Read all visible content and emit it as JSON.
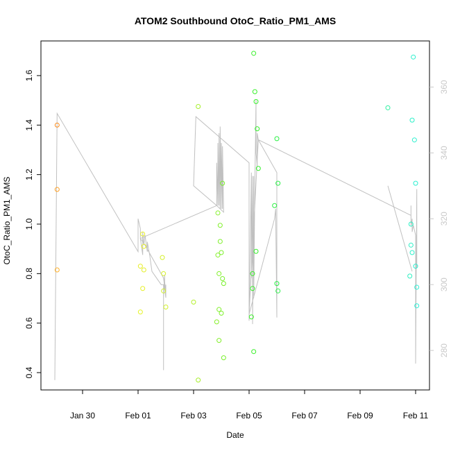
{
  "chart_data": {
    "type": "scatter",
    "title": "ATOM2 Southbound OtoC_Ratio_PM1_AMS",
    "xlabel": "Date",
    "ylabel": "OtoC_Ratio_PM1_AMS",
    "x_ticks": [
      "Jan 30",
      "Feb 01",
      "Feb 03",
      "Feb 05",
      "Feb 07",
      "Feb 09",
      "Feb 11"
    ],
    "y_ticks": [
      "0.4",
      "0.6",
      "0.8",
      "1.0",
      "1.2",
      "1.4",
      "1.6"
    ],
    "y2_ticks": [
      "280",
      "300",
      "320",
      "340",
      "360"
    ],
    "xlim": [
      "Jan 28 12:00",
      "Feb 11 12:00"
    ],
    "ylim": [
      0.33,
      1.74
    ],
    "y2lim": [
      268,
      374
    ],
    "grid": false,
    "legend": "none",
    "points": [
      {
        "x": "Jan 29 02:00",
        "y": 1.4,
        "color": "#ff8c1a"
      },
      {
        "x": "Jan 29 02:00",
        "y": 1.14,
        "color": "#ff9f22"
      },
      {
        "x": "Jan 29 02:00",
        "y": 0.815,
        "color": "#ffb02a"
      },
      {
        "x": "Feb 01 02:00",
        "y": 0.645,
        "color": "#e6f52a"
      },
      {
        "x": "Feb 01 02:00",
        "y": 0.83,
        "color": "#e8ee2a"
      },
      {
        "x": "Feb 01 04:00",
        "y": 0.74,
        "color": "#e6f02a"
      },
      {
        "x": "Feb 01 04:00",
        "y": 0.96,
        "color": "#eaf22a"
      },
      {
        "x": "Feb 01 05:00",
        "y": 0.815,
        "color": "#e4ee2a"
      },
      {
        "x": "Feb 01 05:00",
        "y": 0.91,
        "color": "#e8f02a"
      },
      {
        "x": "Feb 01 21:00",
        "y": 0.865,
        "color": "#d4f02a"
      },
      {
        "x": "Feb 01 22:00",
        "y": 0.73,
        "color": "#d0f02a"
      },
      {
        "x": "Feb 01 22:00",
        "y": 0.8,
        "color": "#d6f02a"
      },
      {
        "x": "Feb 02 00:00",
        "y": 0.665,
        "color": "#d2f02a"
      },
      {
        "x": "Feb 03 00:00",
        "y": 0.685,
        "color": "#b4f02a"
      },
      {
        "x": "Feb 03 04:00",
        "y": 1.475,
        "color": "#a6f02a"
      },
      {
        "x": "Feb 03 04:00",
        "y": 0.37,
        "color": "#a6ee2a"
      },
      {
        "x": "Feb 03 20:00",
        "y": 0.605,
        "color": "#86f02a"
      },
      {
        "x": "Feb 03 21:00",
        "y": 1.045,
        "color": "#84f02a"
      },
      {
        "x": "Feb 03 21:00",
        "y": 0.875,
        "color": "#86f02a"
      },
      {
        "x": "Feb 03 22:00",
        "y": 0.8,
        "color": "#82f02a"
      },
      {
        "x": "Feb 03 22:00",
        "y": 0.655,
        "color": "#80f02a"
      },
      {
        "x": "Feb 03 22:00",
        "y": 0.53,
        "color": "#82ee2a"
      },
      {
        "x": "Feb 03 23:00",
        "y": 0.995,
        "color": "#80f02a"
      },
      {
        "x": "Feb 03 23:00",
        "y": 0.93,
        "color": "#7ef02a"
      },
      {
        "x": "Feb 04 00:00",
        "y": 0.64,
        "color": "#7cf02a"
      },
      {
        "x": "Feb 04 00:00",
        "y": 0.885,
        "color": "#7cf02a"
      },
      {
        "x": "Feb 04 01:00",
        "y": 0.78,
        "color": "#7af02a"
      },
      {
        "x": "Feb 04 01:00",
        "y": 1.165,
        "color": "#7af02a"
      },
      {
        "x": "Feb 04 02:00",
        "y": 0.76,
        "color": "#78f02a"
      },
      {
        "x": "Feb 04 02:00",
        "y": 0.46,
        "color": "#78f02a"
      },
      {
        "x": "Feb 05 02:00",
        "y": 0.625,
        "color": "#3cf02a"
      },
      {
        "x": "Feb 05 03:00",
        "y": 0.8,
        "color": "#3af02a"
      },
      {
        "x": "Feb 05 03:00",
        "y": 0.74,
        "color": "#3af02a"
      },
      {
        "x": "Feb 05 04:00",
        "y": 0.485,
        "color": "#3af02a"
      },
      {
        "x": "Feb 05 04:00",
        "y": 1.69,
        "color": "#38f02a"
      },
      {
        "x": "Feb 05 05:00",
        "y": 1.535,
        "color": "#38f02a"
      },
      {
        "x": "Feb 05 06:00",
        "y": 1.495,
        "color": "#36f02a"
      },
      {
        "x": "Feb 05 06:00",
        "y": 0.89,
        "color": "#36f02a"
      },
      {
        "x": "Feb 05 07:00",
        "y": 1.385,
        "color": "#34f02a"
      },
      {
        "x": "Feb 05 08:00",
        "y": 1.225,
        "color": "#34f02a"
      },
      {
        "x": "Feb 05 22:00",
        "y": 1.075,
        "color": "#2af040"
      },
      {
        "x": "Feb 06 00:00",
        "y": 1.345,
        "color": "#2af044"
      },
      {
        "x": "Feb 06 00:00",
        "y": 0.76,
        "color": "#2af046"
      },
      {
        "x": "Feb 06 01:00",
        "y": 0.73,
        "color": "#2af048"
      },
      {
        "x": "Feb 06 01:00",
        "y": 1.165,
        "color": "#2af048"
      },
      {
        "x": "Feb 10 00:00",
        "y": 1.47,
        "color": "#2af0a0"
      },
      {
        "x": "Feb 10 19:00",
        "y": 0.79,
        "color": "#2af0c0"
      },
      {
        "x": "Feb 10 20:00",
        "y": 1.0,
        "color": "#2af0c4"
      },
      {
        "x": "Feb 10 20:00",
        "y": 0.915,
        "color": "#2af0c6"
      },
      {
        "x": "Feb 10 21:00",
        "y": 1.42,
        "color": "#2af0c8"
      },
      {
        "x": "Feb 10 21:00",
        "y": 0.885,
        "color": "#2af0ca"
      },
      {
        "x": "Feb 10 22:00",
        "y": 1.675,
        "color": "#2af0cc"
      },
      {
        "x": "Feb 10 23:00",
        "y": 1.34,
        "color": "#2af0ce"
      },
      {
        "x": "Feb 11 00:00",
        "y": 1.165,
        "color": "#2af0d0"
      },
      {
        "x": "Feb 11 00:00",
        "y": 0.83,
        "color": "#2af0d2"
      },
      {
        "x": "Feb 11 01:00",
        "y": 0.745,
        "color": "#2af0d4"
      },
      {
        "x": "Feb 11 01:00",
        "y": 0.67,
        "color": "#2af0d6"
      }
    ],
    "line_series": {
      "color": "#c0c0c0",
      "axis": "right",
      "points": [
        [
          "Jan 29 00:00",
          271
        ],
        [
          "Jan 29 02:00",
          352
        ],
        [
          "Feb 01 00:00",
          310
        ],
        [
          "Feb 01 00:00",
          320
        ],
        [
          "Feb 01 02:00",
          317
        ],
        [
          "Feb 01 02:00",
          314
        ],
        [
          "Feb 01 04:00",
          309
        ],
        [
          "Feb 01 04:00",
          316
        ],
        [
          "Feb 01 05:00",
          312
        ],
        [
          "Feb 01 06:00",
          315
        ],
        [
          "Feb 01 08:00",
          310
        ],
        [
          "Feb 01 08:00",
          313
        ],
        [
          "Feb 01 10:00",
          309
        ],
        [
          "Feb 01 12:00",
          304
        ],
        [
          "Feb 01 20:00",
          300
        ],
        [
          "Feb 01 22:00",
          300
        ],
        [
          "Feb 01 22:00",
          274
        ],
        [
          "Feb 01 22:00",
          296
        ],
        [
          "Feb 01 23:00",
          303
        ],
        [
          "Feb 01 23:00",
          301
        ],
        [
          "Feb 02 00:00",
          297
        ],
        [
          "Feb 02 00:00",
          300
        ],
        [
          "Feb 02 00:00",
          296
        ],
        [
          "Feb 01 22:00",
          302
        ],
        [
          "Feb 01 06:00",
          312
        ],
        [
          "Feb 01 02:00",
          314
        ],
        [
          "Feb 03 20:00",
          324
        ],
        [
          "Feb 03 20:00",
          337
        ],
        [
          "Feb 03 21:00",
          324
        ],
        [
          "Feb 03 21:00",
          343
        ],
        [
          "Feb 03 22:00",
          324
        ],
        [
          "Feb 03 22:00",
          346
        ],
        [
          "Feb 03 23:00",
          323
        ],
        [
          "Feb 03 23:00",
          348
        ],
        [
          "Feb 04 00:00",
          323
        ],
        [
          "Feb 04 00:00",
          343
        ],
        [
          "Feb 04 01:00",
          323
        ],
        [
          "Feb 04 01:00",
          342
        ],
        [
          "Feb 04 02:00",
          322
        ],
        [
          "Feb 03 20:00",
          324
        ],
        [
          "Feb 03 00:00",
          330
        ],
        [
          "Feb 03 02:00",
          351
        ],
        [
          "Feb 05 00:00",
          337
        ],
        [
          "Feb 05 00:00",
          289
        ],
        [
          "Feb 05 02:00",
          334
        ],
        [
          "Feb 05 02:00",
          302
        ],
        [
          "Feb 05 03:00",
          333
        ],
        [
          "Feb 05 03:00",
          288
        ],
        [
          "Feb 05 04:00",
          333
        ],
        [
          "Feb 05 04:00",
          296
        ],
        [
          "Feb 05 05:00",
          330
        ],
        [
          "Feb 05 06:00",
          356
        ],
        [
          "Feb 05 06:00",
          340
        ],
        [
          "Feb 05 07:00",
          336
        ],
        [
          "Feb 05 07:00",
          346
        ],
        [
          "Feb 05 08:00",
          344
        ],
        [
          "Feb 05 00:00",
          291
        ],
        [
          "Feb 05 22:00",
          320
        ],
        [
          "Feb 05 23:00",
          323
        ],
        [
          "Feb 06 00:00",
          290
        ],
        [
          "Feb 06 00:00",
          321
        ],
        [
          "Feb 06 00:00",
          334
        ],
        [
          "Feb 05 08:00",
          344
        ],
        [
          "Feb 10 20:00",
          321
        ],
        [
          "Feb 10 20:00",
          324
        ],
        [
          "Feb 10 20:00",
          318
        ],
        [
          "Feb 10 21:00",
          320
        ],
        [
          "Feb 10 21:00",
          316
        ],
        [
          "Feb 10 22:00",
          318
        ],
        [
          "Feb 11 00:00",
          315
        ],
        [
          "Feb 11 00:00",
          276
        ],
        [
          "Feb 11 01:00",
          329
        ],
        [
          "Feb 11 01:00",
          305
        ]
      ],
      "extra_segment": [
        [
          "Feb 10 00:00",
          330
        ],
        [
          "Feb 10 21:00",
          304
        ]
      ]
    }
  }
}
